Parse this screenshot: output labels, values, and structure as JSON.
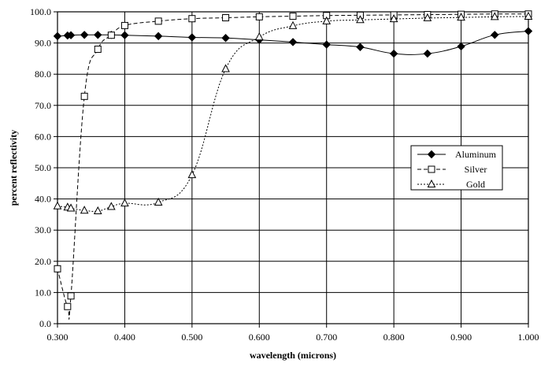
{
  "chart_data": {
    "type": "line",
    "title": "",
    "xlabel": "wavelength (microns)",
    "ylabel": "percent reflectivity",
    "xlim": [
      0.3,
      1.0
    ],
    "ylim": [
      0,
      100
    ],
    "x_ticks": [
      "0.300",
      "0.400",
      "0.500",
      "0.600",
      "0.700",
      "0.800",
      "0.900",
      "1.000"
    ],
    "y_ticks": [
      "0.0",
      "10.0",
      "20.0",
      "30.0",
      "40.0",
      "50.0",
      "60.0",
      "70.0",
      "80.0",
      "90.0",
      "100.0"
    ],
    "grid": true,
    "legend_position": "right",
    "series": [
      {
        "name": "Aluminum",
        "marker": "diamond",
        "line_style": "solid",
        "color": "#000000",
        "x": [
          0.3,
          0.315,
          0.32,
          0.34,
          0.36,
          0.38,
          0.4,
          0.45,
          0.5,
          0.55,
          0.6,
          0.65,
          0.7,
          0.75,
          0.8,
          0.85,
          0.9,
          0.95,
          1.0
        ],
        "y": [
          92.2,
          92.4,
          92.5,
          92.6,
          92.6,
          92.6,
          92.5,
          92.2,
          91.8,
          91.6,
          91.0,
          90.3,
          89.5,
          88.7,
          86.6,
          86.6,
          88.9,
          92.6,
          93.8
        ]
      },
      {
        "name": "Silver",
        "marker": "square",
        "line_style": "dashed",
        "color": "#000000",
        "x": [
          0.3,
          0.315,
          0.32,
          0.34,
          0.36,
          0.38,
          0.4,
          0.45,
          0.5,
          0.55,
          0.6,
          0.65,
          0.7,
          0.75,
          0.8,
          0.85,
          0.9,
          0.95,
          1.0
        ],
        "y": [
          17.6,
          5.5,
          8.9,
          72.9,
          88.0,
          92.5,
          95.6,
          97.0,
          97.8,
          98.1,
          98.4,
          98.6,
          98.8,
          98.9,
          99.0,
          99.1,
          99.2,
          99.3,
          99.3
        ]
      },
      {
        "name": "Gold",
        "marker": "triangle",
        "line_style": "dotted",
        "color": "#000000",
        "x": [
          0.3,
          0.315,
          0.32,
          0.34,
          0.36,
          0.38,
          0.4,
          0.45,
          0.5,
          0.55,
          0.6,
          0.65,
          0.7,
          0.75,
          0.8,
          0.85,
          0.9,
          0.95,
          1.0
        ],
        "y": [
          37.7,
          37.3,
          37.0,
          36.3,
          36.1,
          37.5,
          38.6,
          38.9,
          47.7,
          81.7,
          91.9,
          95.5,
          97.0,
          97.4,
          97.7,
          98.0,
          98.2,
          98.4,
          98.5
        ]
      }
    ]
  }
}
